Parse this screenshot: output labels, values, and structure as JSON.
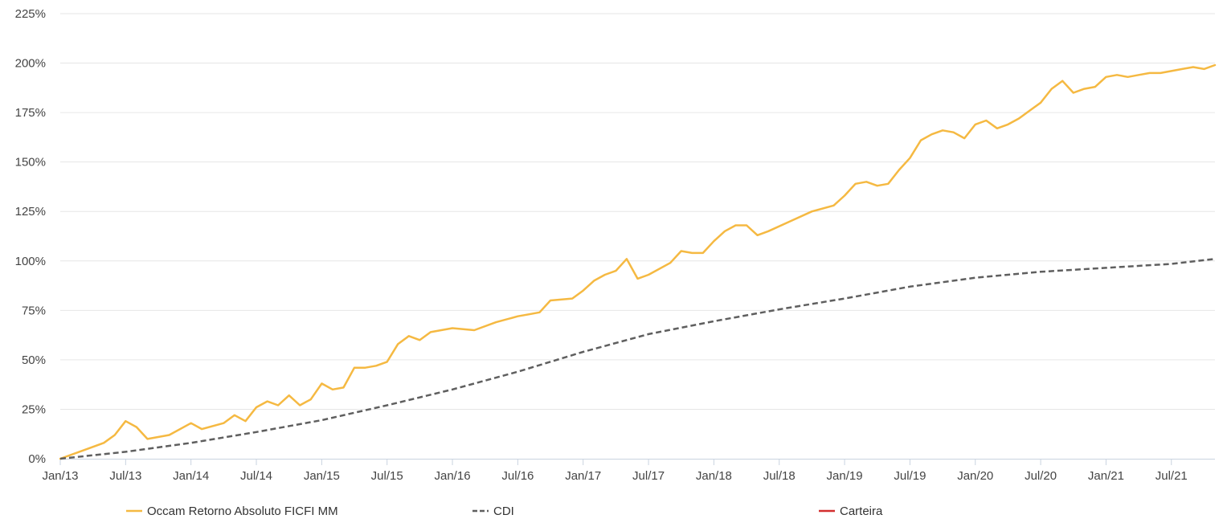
{
  "chart_data": {
    "type": "line",
    "xlabel": "",
    "ylabel": "",
    "grid": true,
    "legend_position": "bottom",
    "x_range": [
      "2013-01",
      "2021-11"
    ],
    "ylim": [
      0,
      225
    ],
    "y_ticks": [
      {
        "value": 0,
        "label": "0%"
      },
      {
        "value": 25,
        "label": "25%"
      },
      {
        "value": 50,
        "label": "50%"
      },
      {
        "value": 75,
        "label": "75%"
      },
      {
        "value": 100,
        "label": "100%"
      },
      {
        "value": 125,
        "label": "125%"
      },
      {
        "value": 150,
        "label": "150%"
      },
      {
        "value": 175,
        "label": "175%"
      },
      {
        "value": 200,
        "label": "200%"
      },
      {
        "value": 225,
        "label": "225%"
      }
    ],
    "x_ticks": [
      {
        "value": "2013-01",
        "label": "Jan/13"
      },
      {
        "value": "2013-07",
        "label": "Jul/13"
      },
      {
        "value": "2014-01",
        "label": "Jan/14"
      },
      {
        "value": "2014-07",
        "label": "Jul/14"
      },
      {
        "value": "2015-01",
        "label": "Jan/15"
      },
      {
        "value": "2015-07",
        "label": "Jul/15"
      },
      {
        "value": "2016-01",
        "label": "Jan/16"
      },
      {
        "value": "2016-07",
        "label": "Jul/16"
      },
      {
        "value": "2017-01",
        "label": "Jan/17"
      },
      {
        "value": "2017-07",
        "label": "Jul/17"
      },
      {
        "value": "2018-01",
        "label": "Jan/18"
      },
      {
        "value": "2018-07",
        "label": "Jul/18"
      },
      {
        "value": "2019-01",
        "label": "Jan/19"
      },
      {
        "value": "2019-07",
        "label": "Jul/19"
      },
      {
        "value": "2020-01",
        "label": "Jan/20"
      },
      {
        "value": "2020-07",
        "label": "Jul/20"
      },
      {
        "value": "2021-01",
        "label": "Jan/21"
      },
      {
        "value": "2021-07",
        "label": "Jul/21"
      }
    ],
    "series": [
      {
        "name": "Occam Retorno Absoluto FICFI MM",
        "color": "#f5b942",
        "style": "solid",
        "points": [
          [
            "2013-01",
            0
          ],
          [
            "2013-03",
            4
          ],
          [
            "2013-05",
            8
          ],
          [
            "2013-06",
            12
          ],
          [
            "2013-07",
            19
          ],
          [
            "2013-08",
            16
          ],
          [
            "2013-09",
            10
          ],
          [
            "2013-11",
            12
          ],
          [
            "2014-01",
            18
          ],
          [
            "2014-02",
            15
          ],
          [
            "2014-04",
            18
          ],
          [
            "2014-05",
            22
          ],
          [
            "2014-06",
            19
          ],
          [
            "2014-07",
            26
          ],
          [
            "2014-08",
            29
          ],
          [
            "2014-09",
            27
          ],
          [
            "2014-10",
            32
          ],
          [
            "2014-11",
            27
          ],
          [
            "2014-12",
            30
          ],
          [
            "2015-01",
            38
          ],
          [
            "2015-02",
            35
          ],
          [
            "2015-03",
            36
          ],
          [
            "2015-04",
            46
          ],
          [
            "2015-05",
            46
          ],
          [
            "2015-06",
            47
          ],
          [
            "2015-07",
            49
          ],
          [
            "2015-08",
            58
          ],
          [
            "2015-09",
            62
          ],
          [
            "2015-10",
            60
          ],
          [
            "2015-11",
            64
          ],
          [
            "2016-01",
            66
          ],
          [
            "2016-03",
            65
          ],
          [
            "2016-05",
            69
          ],
          [
            "2016-07",
            72
          ],
          [
            "2016-08",
            73
          ],
          [
            "2016-09",
            74
          ],
          [
            "2016-10",
            80
          ],
          [
            "2016-12",
            81
          ],
          [
            "2017-01",
            85
          ],
          [
            "2017-02",
            90
          ],
          [
            "2017-03",
            93
          ],
          [
            "2017-04",
            95
          ],
          [
            "2017-05",
            101
          ],
          [
            "2017-06",
            91
          ],
          [
            "2017-07",
            93
          ],
          [
            "2017-09",
            99
          ],
          [
            "2017-10",
            105
          ],
          [
            "2017-11",
            104
          ],
          [
            "2017-12",
            104
          ],
          [
            "2018-01",
            110
          ],
          [
            "2018-02",
            115
          ],
          [
            "2018-03",
            118
          ],
          [
            "2018-04",
            118
          ],
          [
            "2018-05",
            113
          ],
          [
            "2018-06",
            115
          ],
          [
            "2018-08",
            120
          ],
          [
            "2018-10",
            125
          ],
          [
            "2018-12",
            128
          ],
          [
            "2019-01",
            133
          ],
          [
            "2019-02",
            139
          ],
          [
            "2019-03",
            140
          ],
          [
            "2019-04",
            138
          ],
          [
            "2019-05",
            139
          ],
          [
            "2019-06",
            146
          ],
          [
            "2019-07",
            152
          ],
          [
            "2019-08",
            161
          ],
          [
            "2019-09",
            164
          ],
          [
            "2019-10",
            166
          ],
          [
            "2019-11",
            165
          ],
          [
            "2019-12",
            162
          ],
          [
            "2020-01",
            169
          ],
          [
            "2020-02",
            171
          ],
          [
            "2020-03",
            167
          ],
          [
            "2020-04",
            169
          ],
          [
            "2020-05",
            172
          ],
          [
            "2020-06",
            176
          ],
          [
            "2020-07",
            180
          ],
          [
            "2020-08",
            187
          ],
          [
            "2020-09",
            191
          ],
          [
            "2020-10",
            185
          ],
          [
            "2020-11",
            187
          ],
          [
            "2020-12",
            188
          ],
          [
            "2021-01",
            193
          ],
          [
            "2021-02",
            194
          ],
          [
            "2021-03",
            193
          ],
          [
            "2021-04",
            194
          ],
          [
            "2021-05",
            195
          ],
          [
            "2021-06",
            195
          ],
          [
            "2021-07",
            196
          ],
          [
            "2021-08",
            197
          ],
          [
            "2021-09",
            198
          ],
          [
            "2021-10",
            197
          ],
          [
            "2021-11",
            199
          ]
        ]
      },
      {
        "name": "CDI",
        "color": "#5f5f5f",
        "style": "dashed",
        "points": [
          [
            "2013-01",
            0
          ],
          [
            "2013-07",
            3.5
          ],
          [
            "2014-01",
            8
          ],
          [
            "2014-07",
            13.5
          ],
          [
            "2015-01",
            19.5
          ],
          [
            "2015-07",
            27
          ],
          [
            "2016-01",
            35
          ],
          [
            "2016-07",
            44
          ],
          [
            "2017-01",
            54
          ],
          [
            "2017-07",
            63
          ],
          [
            "2018-01",
            69.5
          ],
          [
            "2018-07",
            75.5
          ],
          [
            "2019-01",
            81
          ],
          [
            "2019-07",
            87
          ],
          [
            "2020-01",
            91.5
          ],
          [
            "2020-07",
            94.5
          ],
          [
            "2021-01",
            96.5
          ],
          [
            "2021-07",
            98.5
          ],
          [
            "2021-11",
            101
          ]
        ]
      },
      {
        "name": "Carteira",
        "color": "#d32f2f",
        "style": "solid",
        "points": []
      }
    ]
  }
}
